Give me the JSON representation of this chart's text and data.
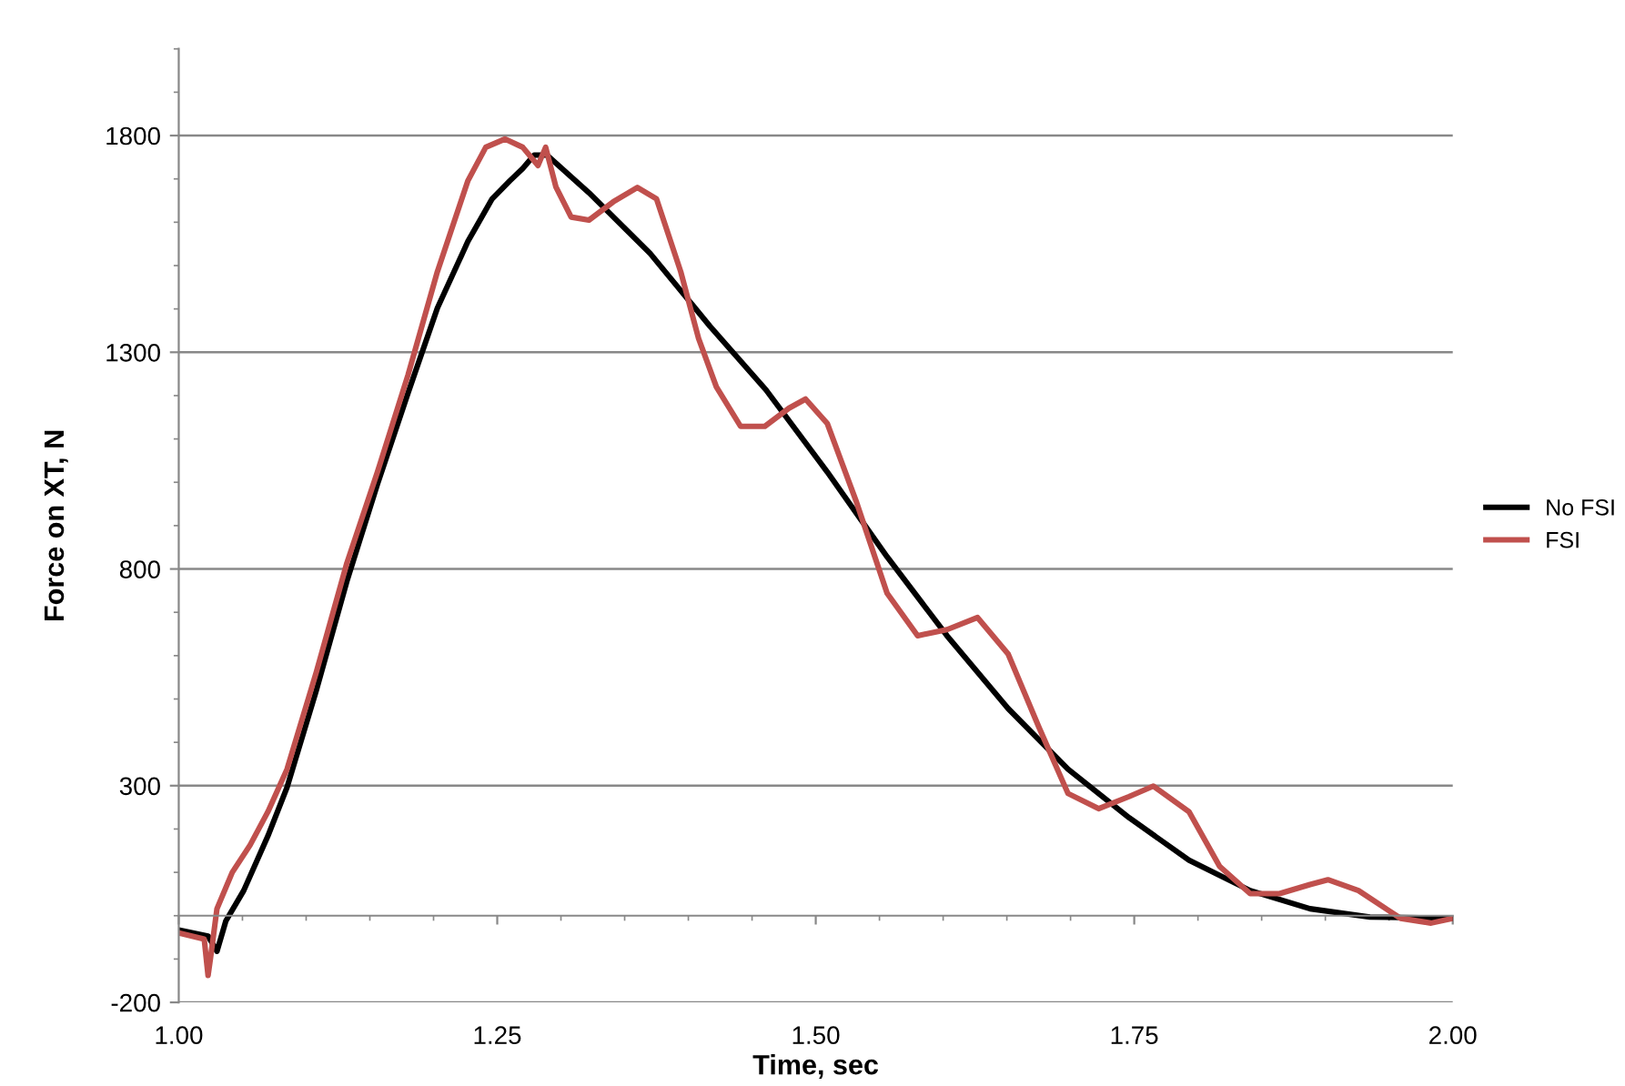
{
  "chart_data": {
    "type": "line",
    "xlabel": "Time, sec",
    "ylabel": "Force on XT, N",
    "xlim": [
      1.0,
      2.0
    ],
    "xticks": [
      {
        "value": 1.0,
        "label": "1.00"
      },
      {
        "value": 1.25,
        "label": "1.25"
      },
      {
        "value": 1.5,
        "label": "1.50"
      },
      {
        "value": 1.75,
        "label": "1.75"
      },
      {
        "value": 2.0,
        "label": "2.00"
      }
    ],
    "ylim": [
      -200,
      2000
    ],
    "yticks": [
      -200,
      300,
      800,
      1300,
      1800
    ],
    "grid": "y",
    "legend": "right",
    "marker": "none",
    "line_style": "solid",
    "series": [
      {
        "name": "No FSI",
        "color": "#000000",
        "x": [
          1.0,
          1.023,
          1.03,
          1.037,
          1.051,
          1.07,
          1.085,
          1.108,
          1.132,
          1.156,
          1.18,
          1.203,
          1.227,
          1.246,
          1.26,
          1.27,
          1.279,
          1.289,
          1.322,
          1.37,
          1.417,
          1.461,
          1.509,
          1.556,
          1.603,
          1.651,
          1.698,
          1.746,
          1.793,
          1.841,
          1.888,
          1.935,
          2.0
        ],
        "values": [
          -33,
          -47,
          -82,
          -12,
          58,
          184,
          296,
          520,
          772,
          996,
          1206,
          1402,
          1556,
          1654,
          1696,
          1724,
          1755,
          1755,
          1668,
          1528,
          1360,
          1213,
          1024,
          828,
          646,
          478,
          338,
          226,
          128,
          58,
          16,
          -3,
          -6
        ]
      },
      {
        "name": "FSI",
        "color": "#c0504d",
        "x": [
          1.0,
          1.02,
          1.023,
          1.025,
          1.03,
          1.042,
          1.056,
          1.07,
          1.085,
          1.108,
          1.132,
          1.156,
          1.18,
          1.203,
          1.227,
          1.241,
          1.256,
          1.27,
          1.282,
          1.288,
          1.296,
          1.308,
          1.322,
          1.341,
          1.36,
          1.375,
          1.394,
          1.408,
          1.422,
          1.441,
          1.46,
          1.479,
          1.492,
          1.509,
          1.532,
          1.556,
          1.58,
          1.603,
          1.627,
          1.651,
          1.675,
          1.698,
          1.722,
          1.746,
          1.765,
          1.793,
          1.817,
          1.841,
          1.864,
          1.888,
          1.902,
          1.926,
          1.959,
          1.983,
          2.0
        ],
        "values": [
          -40,
          -54,
          -138,
          -96,
          16,
          100,
          163,
          240,
          338,
          562,
          814,
          1024,
          1248,
          1486,
          1696,
          1773,
          1792,
          1773,
          1731,
          1773,
          1682,
          1612,
          1605,
          1647,
          1680,
          1654,
          1486,
          1332,
          1220,
          1129,
          1129,
          1171,
          1192,
          1136,
          954,
          744,
          646,
          660,
          688,
          604,
          436,
          282,
          247,
          275,
          299,
          240,
          114,
          51,
          51,
          72,
          83,
          58,
          -6,
          -17,
          -6
        ]
      }
    ]
  }
}
